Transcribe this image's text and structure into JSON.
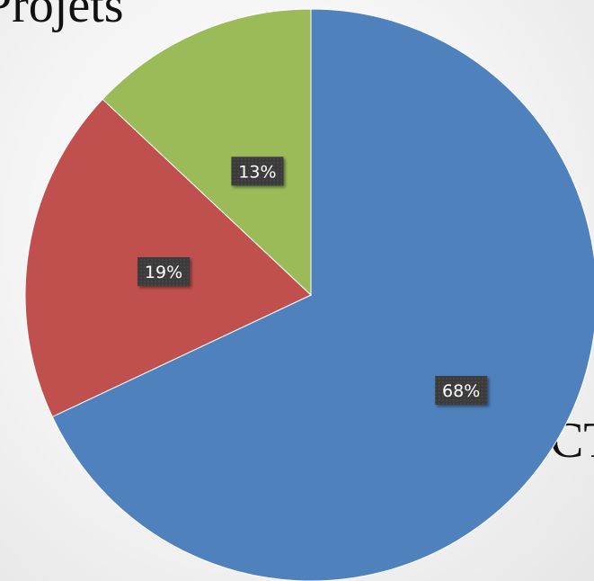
{
  "background": {
    "title_fragment": "Projets",
    "side_fragment": "CT"
  },
  "chart_data": {
    "type": "pie",
    "start_angle_deg": 0,
    "direction": "clockwise",
    "slices": [
      {
        "value": 68,
        "label": "68%",
        "color": "#4f81bd"
      },
      {
        "value": 19,
        "label": "19%",
        "color": "#c0504d"
      },
      {
        "value": 13,
        "label": "13%",
        "color": "#9bbb59"
      }
    ]
  }
}
